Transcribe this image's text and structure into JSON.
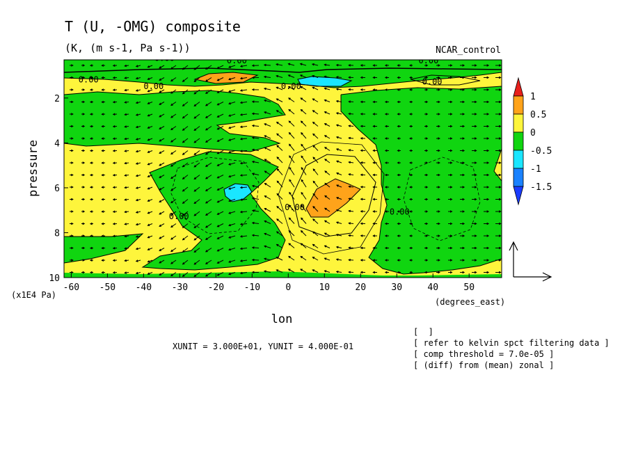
{
  "chart_data": {
    "type": "heatmap",
    "title": "T (U, -OMG) composite",
    "subtitle": "(K, (m s-1, Pa s-1))",
    "model_label": "NCAR_control",
    "xlabel": "lon",
    "ylabel": "pressure",
    "x_unit_label": "(degrees_east)",
    "y_unit_label": "(x1E4 Pa)",
    "xlim": [
      -62,
      59
    ],
    "ylim": [
      10,
      0.3
    ],
    "x_ticks": [
      -60,
      -50,
      -40,
      -30,
      -20,
      -10,
      0,
      10,
      20,
      30,
      40,
      50
    ],
    "y_ticks": [
      2,
      4,
      6,
      8,
      10
    ],
    "contour_label_text": "0.00",
    "contour_labels": [
      {
        "x": -37,
        "y": 0.35
      },
      {
        "x": -17,
        "y": 0.45
      },
      {
        "x": 36,
        "y": 0.45
      },
      {
        "x": -58,
        "y": 1.3
      },
      {
        "x": -40,
        "y": 1.6
      },
      {
        "x": -2,
        "y": 1.6
      },
      {
        "x": 37,
        "y": 1.4
      },
      {
        "x": -33,
        "y": 7.4
      },
      {
        "x": -1,
        "y": 7.0
      },
      {
        "x": 28,
        "y": 7.2
      }
    ],
    "colorbar": {
      "levels": [
        "1",
        "0.5",
        "0",
        "-0.5",
        "-1",
        "-1.5"
      ],
      "colors": [
        "#e8201c",
        "#ffa31a",
        "#fef53c",
        "#10d510",
        "#1ae6ff",
        "#1a82ff",
        "#1a3cff"
      ]
    },
    "vector_reference": {
      "xunit_label": "XUNIT = 3.000E+01, YUNIT = 4.000E-01"
    },
    "notes": [
      "[  ]",
      "[ refer to kelvin spct filtering data ]",
      "[ comp threshold = 7.0e-05 ]",
      "[ (diff) from (mean) zonal ]"
    ]
  }
}
